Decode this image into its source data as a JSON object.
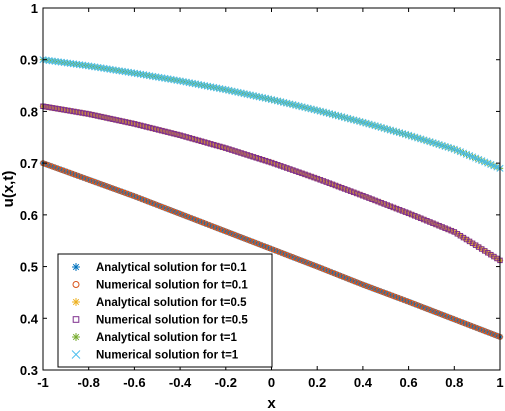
{
  "chart_data": {
    "type": "scatter",
    "xlabel": "x",
    "ylabel": "u(x,t)",
    "xlim": [
      -1,
      1
    ],
    "ylim": [
      0.3,
      1
    ],
    "xticks": [
      -1,
      -0.8,
      -0.6,
      -0.4,
      -0.2,
      0,
      0.2,
      0.4,
      0.6,
      0.8,
      1
    ],
    "xtick_labels": [
      "-1",
      "-0.8",
      "-0.6",
      "-0.4",
      "-0.2",
      "0",
      "0.2",
      "0.4",
      "0.6",
      "0.8",
      "1"
    ],
    "yticks": [
      0.3,
      0.4,
      0.5,
      0.6,
      0.7,
      0.8,
      0.9,
      1
    ],
    "ytick_labels": [
      "0.3",
      "0.4",
      "0.5",
      "0.6",
      "0.7",
      "0.8",
      "0.9",
      "1"
    ],
    "grid": false,
    "legend_position": "bottom-left",
    "x": [
      -1,
      -0.8,
      -0.6,
      -0.4,
      -0.2,
      0,
      0.2,
      0.4,
      0.6,
      0.8,
      1
    ],
    "series": [
      {
        "name": "Analytical solution for t=0.1",
        "marker": "asterisk",
        "color": "#0072BD",
        "values": [
          0.7,
          0.668,
          0.636,
          0.602,
          0.568,
          0.534,
          0.5,
          0.465,
          0.432,
          0.398,
          0.364
        ]
      },
      {
        "name": "Numerical solution for t=0.1",
        "marker": "circle",
        "color": "#D95319",
        "values": [
          0.7,
          0.668,
          0.636,
          0.602,
          0.568,
          0.534,
          0.5,
          0.465,
          0.432,
          0.398,
          0.364
        ]
      },
      {
        "name": "Analytical solution for t=0.5",
        "marker": "asterisk",
        "color": "#EDB120",
        "values": [
          0.81,
          0.795,
          0.776,
          0.754,
          0.729,
          0.701,
          0.67,
          0.637,
          0.603,
          0.567,
          0.512
        ]
      },
      {
        "name": "Numerical solution for t=0.5",
        "marker": "square",
        "color": "#7E2F8E",
        "values": [
          0.81,
          0.795,
          0.776,
          0.754,
          0.729,
          0.701,
          0.67,
          0.637,
          0.603,
          0.567,
          0.512
        ]
      },
      {
        "name": "Analytical solution for t=1",
        "marker": "asterisk",
        "color": "#77AC30",
        "values": [
          0.9,
          0.888,
          0.874,
          0.859,
          0.842,
          0.823,
          0.802,
          0.779,
          0.754,
          0.727,
          0.69
        ]
      },
      {
        "name": "Numerical solution for t=1",
        "marker": "cross",
        "color": "#4DBEEE",
        "values": [
          0.9,
          0.888,
          0.874,
          0.859,
          0.842,
          0.823,
          0.802,
          0.779,
          0.754,
          0.727,
          0.69
        ]
      }
    ]
  }
}
